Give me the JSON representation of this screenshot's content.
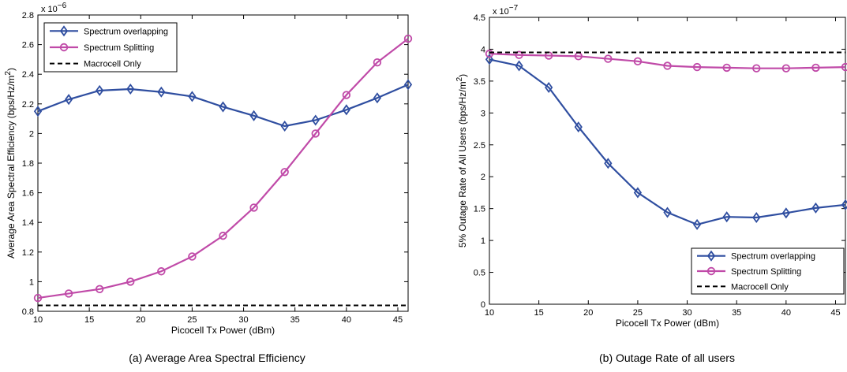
{
  "chart_data": [
    {
      "type": "line",
      "caption": "(a) Average Area Spectral Efficiency",
      "xlabel": "Picocell Tx Power (dBm)",
      "ylabel": "Average Area Spectral Efficiency (bps/Hz/m",
      "ylabel_sup": "2",
      "ylabel_end": ")",
      "multiplier_base": "x 10",
      "multiplier_exp": "−6",
      "xlim": [
        10,
        46
      ],
      "ylim": [
        0.8,
        2.8
      ],
      "xticks": [
        10,
        15,
        20,
        25,
        30,
        35,
        40,
        45
      ],
      "yticks": [
        0.8,
        1,
        1.2,
        1.4,
        1.6,
        1.8,
        2,
        2.2,
        2.4,
        2.6,
        2.8
      ],
      "ytick_labels": [
        "0.8",
        "1",
        "1.2",
        "1.4",
        "1.6",
        "1.8",
        "2",
        "2.2",
        "2.4",
        "2.6",
        "2.8"
      ],
      "legend_position": "top-left",
      "x": [
        10,
        13,
        16,
        19,
        22,
        25,
        28,
        31,
        34,
        37,
        40,
        43,
        46
      ],
      "series": [
        {
          "name": "Spectrum overlapping",
          "color": "#2f4ea0",
          "marker": "diamond",
          "dash": "",
          "values": [
            2.15,
            2.23,
            2.29,
            2.3,
            2.28,
            2.25,
            2.18,
            2.12,
            2.05,
            2.09,
            2.16,
            2.24,
            2.33
          ]
        },
        {
          "name": "Spectrum Splitting",
          "color": "#c04aa8",
          "marker": "circle",
          "dash": "",
          "values": [
            0.89,
            0.92,
            0.95,
            1.0,
            1.07,
            1.17,
            1.31,
            1.5,
            1.74,
            2.0,
            2.26,
            2.48,
            2.64
          ]
        },
        {
          "name": "Macrocell Only",
          "color": "#000000",
          "marker": "none",
          "dash": "6,4",
          "values": [
            0.84,
            0.84,
            0.84,
            0.84,
            0.84,
            0.84,
            0.84,
            0.84,
            0.84,
            0.84,
            0.84,
            0.84,
            0.84
          ]
        }
      ]
    },
    {
      "type": "line",
      "caption": "(b) Outage Rate of all users",
      "xlabel": "Picocell Tx Power (dBm)",
      "ylabel": "5% Outage Rate of All Users (bps/Hz/m",
      "ylabel_sup": "2",
      "ylabel_end": ")",
      "multiplier_base": "x 10",
      "multiplier_exp": "−7",
      "xlim": [
        10,
        46
      ],
      "ylim": [
        0,
        4.5
      ],
      "xticks": [
        10,
        15,
        20,
        25,
        30,
        35,
        40,
        45
      ],
      "yticks": [
        0,
        0.5,
        1,
        1.5,
        2,
        2.5,
        3,
        3.5,
        4,
        4.5
      ],
      "ytick_labels": [
        "0",
        "0.5",
        "1",
        "1.5",
        "2",
        "2.5",
        "3",
        "3.5",
        "4",
        "4.5"
      ],
      "legend_position": "bottom-right",
      "x": [
        10,
        13,
        16,
        19,
        22,
        25,
        28,
        31,
        34,
        37,
        40,
        43,
        46
      ],
      "series": [
        {
          "name": "Spectrum overlapping",
          "color": "#2f4ea0",
          "marker": "diamond",
          "dash": "",
          "values": [
            3.84,
            3.74,
            3.4,
            2.78,
            2.21,
            1.75,
            1.44,
            1.25,
            1.37,
            1.36,
            1.43,
            1.51,
            1.56
          ]
        },
        {
          "name": "Spectrum Splitting",
          "color": "#c04aa8",
          "marker": "circle",
          "dash": "",
          "values": [
            3.93,
            3.91,
            3.9,
            3.89,
            3.85,
            3.81,
            3.74,
            3.72,
            3.71,
            3.7,
            3.7,
            3.71,
            3.72
          ]
        },
        {
          "name": "Macrocell Only",
          "color": "#000000",
          "marker": "none",
          "dash": "6,4",
          "values": [
            3.95,
            3.95,
            3.95,
            3.95,
            3.95,
            3.95,
            3.95,
            3.95,
            3.95,
            3.95,
            3.95,
            3.95,
            3.95
          ]
        }
      ]
    }
  ]
}
